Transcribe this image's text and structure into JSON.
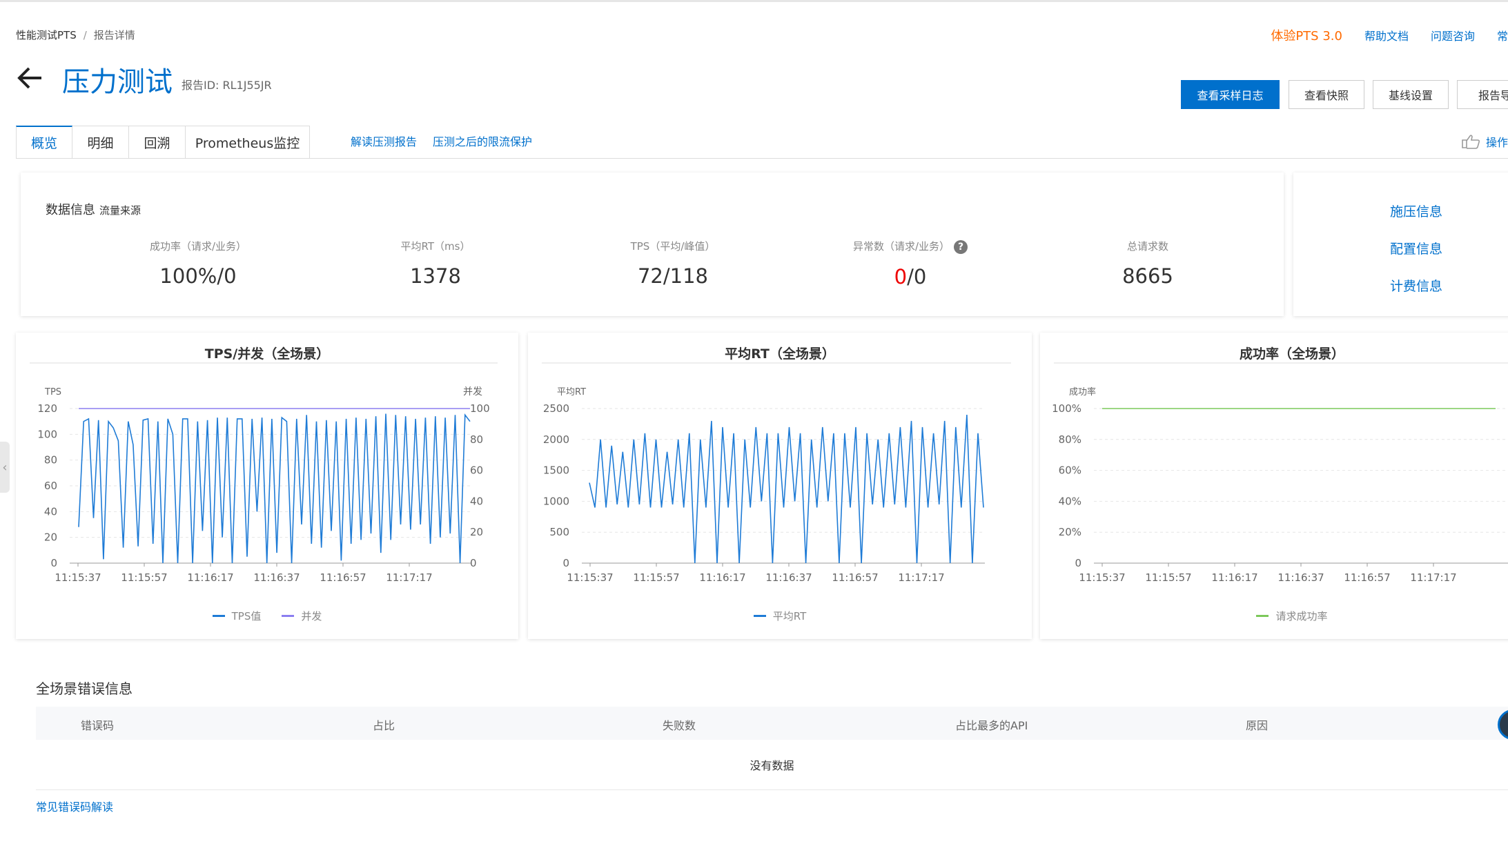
{
  "breadcrumb": {
    "root": "性能测试PTS",
    "separator": "/",
    "current": "报告详情"
  },
  "toplinks": {
    "pts3": "体验PTS 3.0",
    "help": "帮助文档",
    "ask": "问题咨询",
    "more": "常"
  },
  "header": {
    "title": "压力测试",
    "report_id": "报告ID:  RL1J55JR"
  },
  "buttons": {
    "sample_log": "查看采样日志",
    "snapshot": "查看快照",
    "baseline": "基线设置",
    "export": "报告导"
  },
  "tabs": [
    "概览",
    "明细",
    "回溯",
    "Prometheus监控"
  ],
  "tab_links": {
    "interpret": "解读压测报告",
    "protect": "压测之后的限流保护"
  },
  "op_guide": "操作",
  "data_info": {
    "title": "数据信息",
    "subtitle": "流量来源",
    "metrics": [
      {
        "label": "成功率（请求/业务）",
        "value": "100%/0"
      },
      {
        "label": "平均RT（ms）",
        "value": "1378"
      },
      {
        "label": "TPS（平均/峰值）",
        "value": "72/118"
      },
      {
        "label": "异常数（请求/业务）",
        "value_red": "0",
        "value_rest": "/0",
        "help": "?"
      },
      {
        "label": "总请求数",
        "value": "8665"
      }
    ]
  },
  "side_links": [
    "施压信息",
    "配置信息",
    "计费信息"
  ],
  "colors": {
    "brand": "#0070cc",
    "orange": "#ff6a00",
    "red": "#e00000",
    "tps": "#1e7bd6",
    "concurrency": "#8b7ef0",
    "success": "#7cc85a"
  },
  "chart_data": [
    {
      "type": "line",
      "title": "TPS/并发（全场景）",
      "ylabel": "TPS",
      "y2label": "并发",
      "ylim": [
        0,
        120
      ],
      "y2lim": [
        0,
        100
      ],
      "yticks": [
        "120",
        "100",
        "80",
        "60",
        "40",
        "20",
        "0"
      ],
      "y2ticks": [
        "100",
        "80",
        "60",
        "40",
        "20",
        "0"
      ],
      "xticks": [
        "11:15:37",
        "11:15:57",
        "11:16:17",
        "11:16:37",
        "11:16:57",
        "11:17:17"
      ],
      "series": [
        {
          "name": "TPS值",
          "values": [
            28,
            110,
            112,
            35,
            111,
            3,
            110,
            105,
            95,
            12,
            110,
            92,
            13,
            111,
            112,
            15,
            110,
            0,
            112,
            100,
            0,
            112,
            112,
            0,
            110,
            25,
            111,
            0,
            113,
            20,
            113,
            0,
            112,
            112,
            5,
            112,
            40,
            113,
            0,
            112,
            8,
            113,
            110,
            0,
            112,
            30,
            115,
            15,
            110,
            12,
            111,
            25,
            110,
            2,
            112,
            15,
            113,
            18,
            112,
            23,
            114,
            8,
            116,
            18,
            115,
            30,
            114,
            26,
            112,
            30,
            113,
            15,
            114,
            20,
            113,
            23,
            115,
            0,
            115,
            110
          ]
        },
        {
          "name": "并发",
          "values": [
            100,
            100
          ]
        }
      ]
    },
    {
      "type": "line",
      "title": "平均RT（全场景）",
      "ylabel": "平均RT",
      "ylim": [
        0,
        2500
      ],
      "yticks": [
        "2500",
        "2000",
        "1500",
        "1000",
        "500",
        "0"
      ],
      "xticks": [
        "11:15:37",
        "11:15:57",
        "11:16:17",
        "11:16:37",
        "11:16:57",
        "11:17:17"
      ],
      "series": [
        {
          "name": "平均RT",
          "values": [
            1300,
            900,
            2000,
            900,
            1900,
            950,
            1800,
            900,
            2000,
            950,
            2100,
            900,
            2000,
            900,
            1800,
            950,
            2000,
            900,
            2100,
            0,
            2000,
            900,
            2300,
            0,
            2200,
            900,
            2100,
            0,
            2000,
            900,
            2200,
            1000,
            2100,
            0,
            2100,
            900,
            2200,
            1000,
            2100,
            0,
            2000,
            900,
            2200,
            1000,
            2100,
            0,
            2100,
            900,
            2200,
            0,
            2100,
            950,
            2000,
            900,
            2100,
            950,
            2200,
            900,
            2300,
            0,
            2200,
            900,
            2100,
            950,
            2300,
            0,
            2200,
            900,
            2400,
            0,
            2100,
            900
          ]
        }
      ]
    },
    {
      "type": "line",
      "title": "成功率（全场景）",
      "ylabel": "成功率",
      "ylim": [
        0,
        100
      ],
      "yticks": [
        "100%",
        "80%",
        "60%",
        "40%",
        "20%",
        "0"
      ],
      "xticks": [
        "11:15:37",
        "11:15:57",
        "11:16:17",
        "11:16:37",
        "11:16:57",
        "11:17:17"
      ],
      "series": [
        {
          "name": "请求成功率",
          "values": [
            100,
            100
          ]
        }
      ]
    }
  ],
  "errors": {
    "title": "全场景错误信息",
    "columns": [
      "错误码",
      "占比",
      "失败数",
      "占比最多的API",
      "原因"
    ],
    "empty": "没有数据",
    "link": "常见错误码解读"
  }
}
